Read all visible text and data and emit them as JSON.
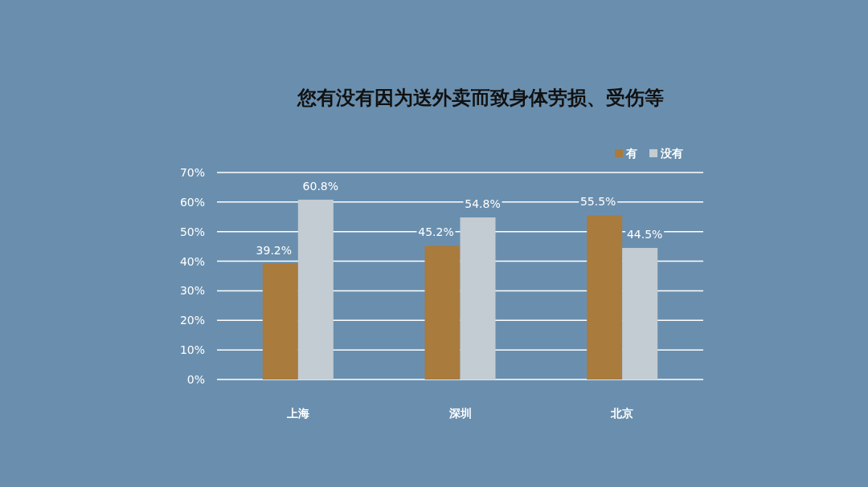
{
  "chart_data": {
    "type": "bar",
    "title": "您有没有因为送外卖而致身体劳损、受伤等",
    "categories": [
      "上海",
      "深圳",
      "北京"
    ],
    "series": [
      {
        "name": "有",
        "color": "#a97b3d",
        "values": [
          39.2,
          45.2,
          55.5
        ]
      },
      {
        "name": "没有",
        "color": "#c3ccd3",
        "values": [
          60.8,
          54.8,
          44.5
        ]
      }
    ],
    "ylim": [
      0,
      70
    ],
    "yticks": [
      {
        "value": 0,
        "label": "0%"
      },
      {
        "value": 10,
        "label": "10%"
      },
      {
        "value": 20,
        "label": "20%"
      },
      {
        "value": 30,
        "label": "30%"
      },
      {
        "value": 40,
        "label": "40%"
      },
      {
        "value": 50,
        "label": "50%"
      },
      {
        "value": 60,
        "label": "60%"
      },
      {
        "value": 70,
        "label": "70%"
      }
    ],
    "value_labels": [
      [
        "39.2%",
        "45.2%",
        "55.5%"
      ],
      [
        "60.8%",
        "54.8%",
        "44.5%"
      ]
    ],
    "grid": "y",
    "legend": "top right"
  }
}
